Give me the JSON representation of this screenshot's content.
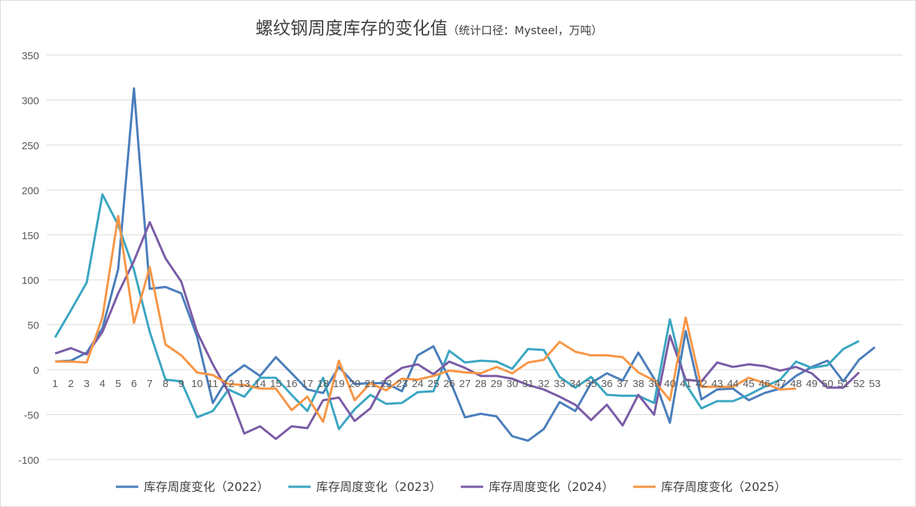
{
  "chart_data": {
    "type": "line",
    "title": "螺纹钢周度库存的变化值",
    "subtitle": "（统计口径：Mysteel，万吨）",
    "xlabel": "",
    "ylabel": "",
    "x": [
      1,
      2,
      3,
      4,
      5,
      6,
      7,
      8,
      9,
      10,
      11,
      12,
      13,
      14,
      15,
      16,
      17,
      18,
      19,
      20,
      21,
      22,
      23,
      24,
      25,
      26,
      27,
      28,
      29,
      30,
      31,
      32,
      33,
      34,
      35,
      36,
      37,
      38,
      39,
      40,
      41,
      42,
      43,
      44,
      45,
      46,
      47,
      48,
      49,
      50,
      51,
      52,
      53
    ],
    "ylim": [
      -100,
      350
    ],
    "yticks": [
      350,
      300,
      250,
      200,
      150,
      100,
      50,
      0,
      -50,
      -100
    ],
    "grid": true,
    "legend_position": "bottom",
    "series": [
      {
        "name": "库存周度变化（2022）",
        "color": "#4a7ebb",
        "values": [
          9,
          10,
          19,
          46,
          112,
          313,
          90,
          92,
          85,
          37,
          -37,
          -8,
          5,
          -7,
          14,
          -4,
          -22,
          -26,
          3,
          -16,
          -15,
          -15,
          -24,
          16,
          26,
          -10,
          -53,
          -49,
          -52,
          -74,
          -79,
          -66,
          -36,
          -46,
          -15,
          -4,
          -12,
          19,
          -10,
          -59,
          43,
          -33,
          -22,
          -21,
          -34,
          -26,
          -21,
          -7,
          3,
          10,
          -13,
          11,
          25
        ]
      },
      {
        "name": "库存周度变化（2023）",
        "color": "#3ba6c2",
        "values": [
          36,
          66,
          97,
          195,
          161,
          111,
          42,
          -11,
          -13,
          -53,
          -46,
          -22,
          -30,
          -9,
          -9,
          -28,
          -46,
          -9,
          -66,
          -44,
          -28,
          -38,
          -37,
          -25,
          -24,
          21,
          8,
          10,
          9,
          1,
          23,
          22,
          -8,
          -20,
          -8,
          -28,
          -29,
          -29,
          -37,
          56,
          -16,
          -43,
          -35,
          -35,
          -28,
          -19,
          -11,
          9,
          2,
          5,
          23,
          32,
          null
        ]
      },
      {
        "name": "库存周度变化（2024）",
        "color": "#7a5ca6",
        "values": [
          18,
          24,
          17,
          42,
          85,
          121,
          164,
          124,
          98,
          42,
          6,
          -25,
          -71,
          -63,
          -77,
          -63,
          -65,
          -34,
          -31,
          -57,
          -43,
          -10,
          2,
          6,
          -5,
          9,
          2,
          -7,
          -7,
          -10,
          -17,
          -22,
          -30,
          -39,
          -56,
          -39,
          -62,
          -28,
          -50,
          38,
          -11,
          -13,
          8,
          3,
          6,
          4,
          -1,
          3,
          -4,
          -20,
          -20,
          -3,
          null
        ]
      },
      {
        "name": "库存周度变化（2025）",
        "color": "#f79646",
        "values": [
          9,
          9,
          8,
          58,
          171,
          52,
          114,
          28,
          16,
          -3,
          -6,
          -16,
          -17,
          -21,
          -21,
          -45,
          -30,
          -58,
          10,
          -34,
          -15,
          -23,
          -10,
          -11,
          -7,
          -1,
          -3,
          -4,
          3,
          -4,
          8,
          11,
          31,
          20,
          16,
          16,
          14,
          -3,
          -12,
          -34,
          58,
          -19,
          -19,
          -19,
          -9,
          -15,
          -22,
          -21,
          null,
          null,
          null,
          null,
          null
        ]
      }
    ]
  }
}
